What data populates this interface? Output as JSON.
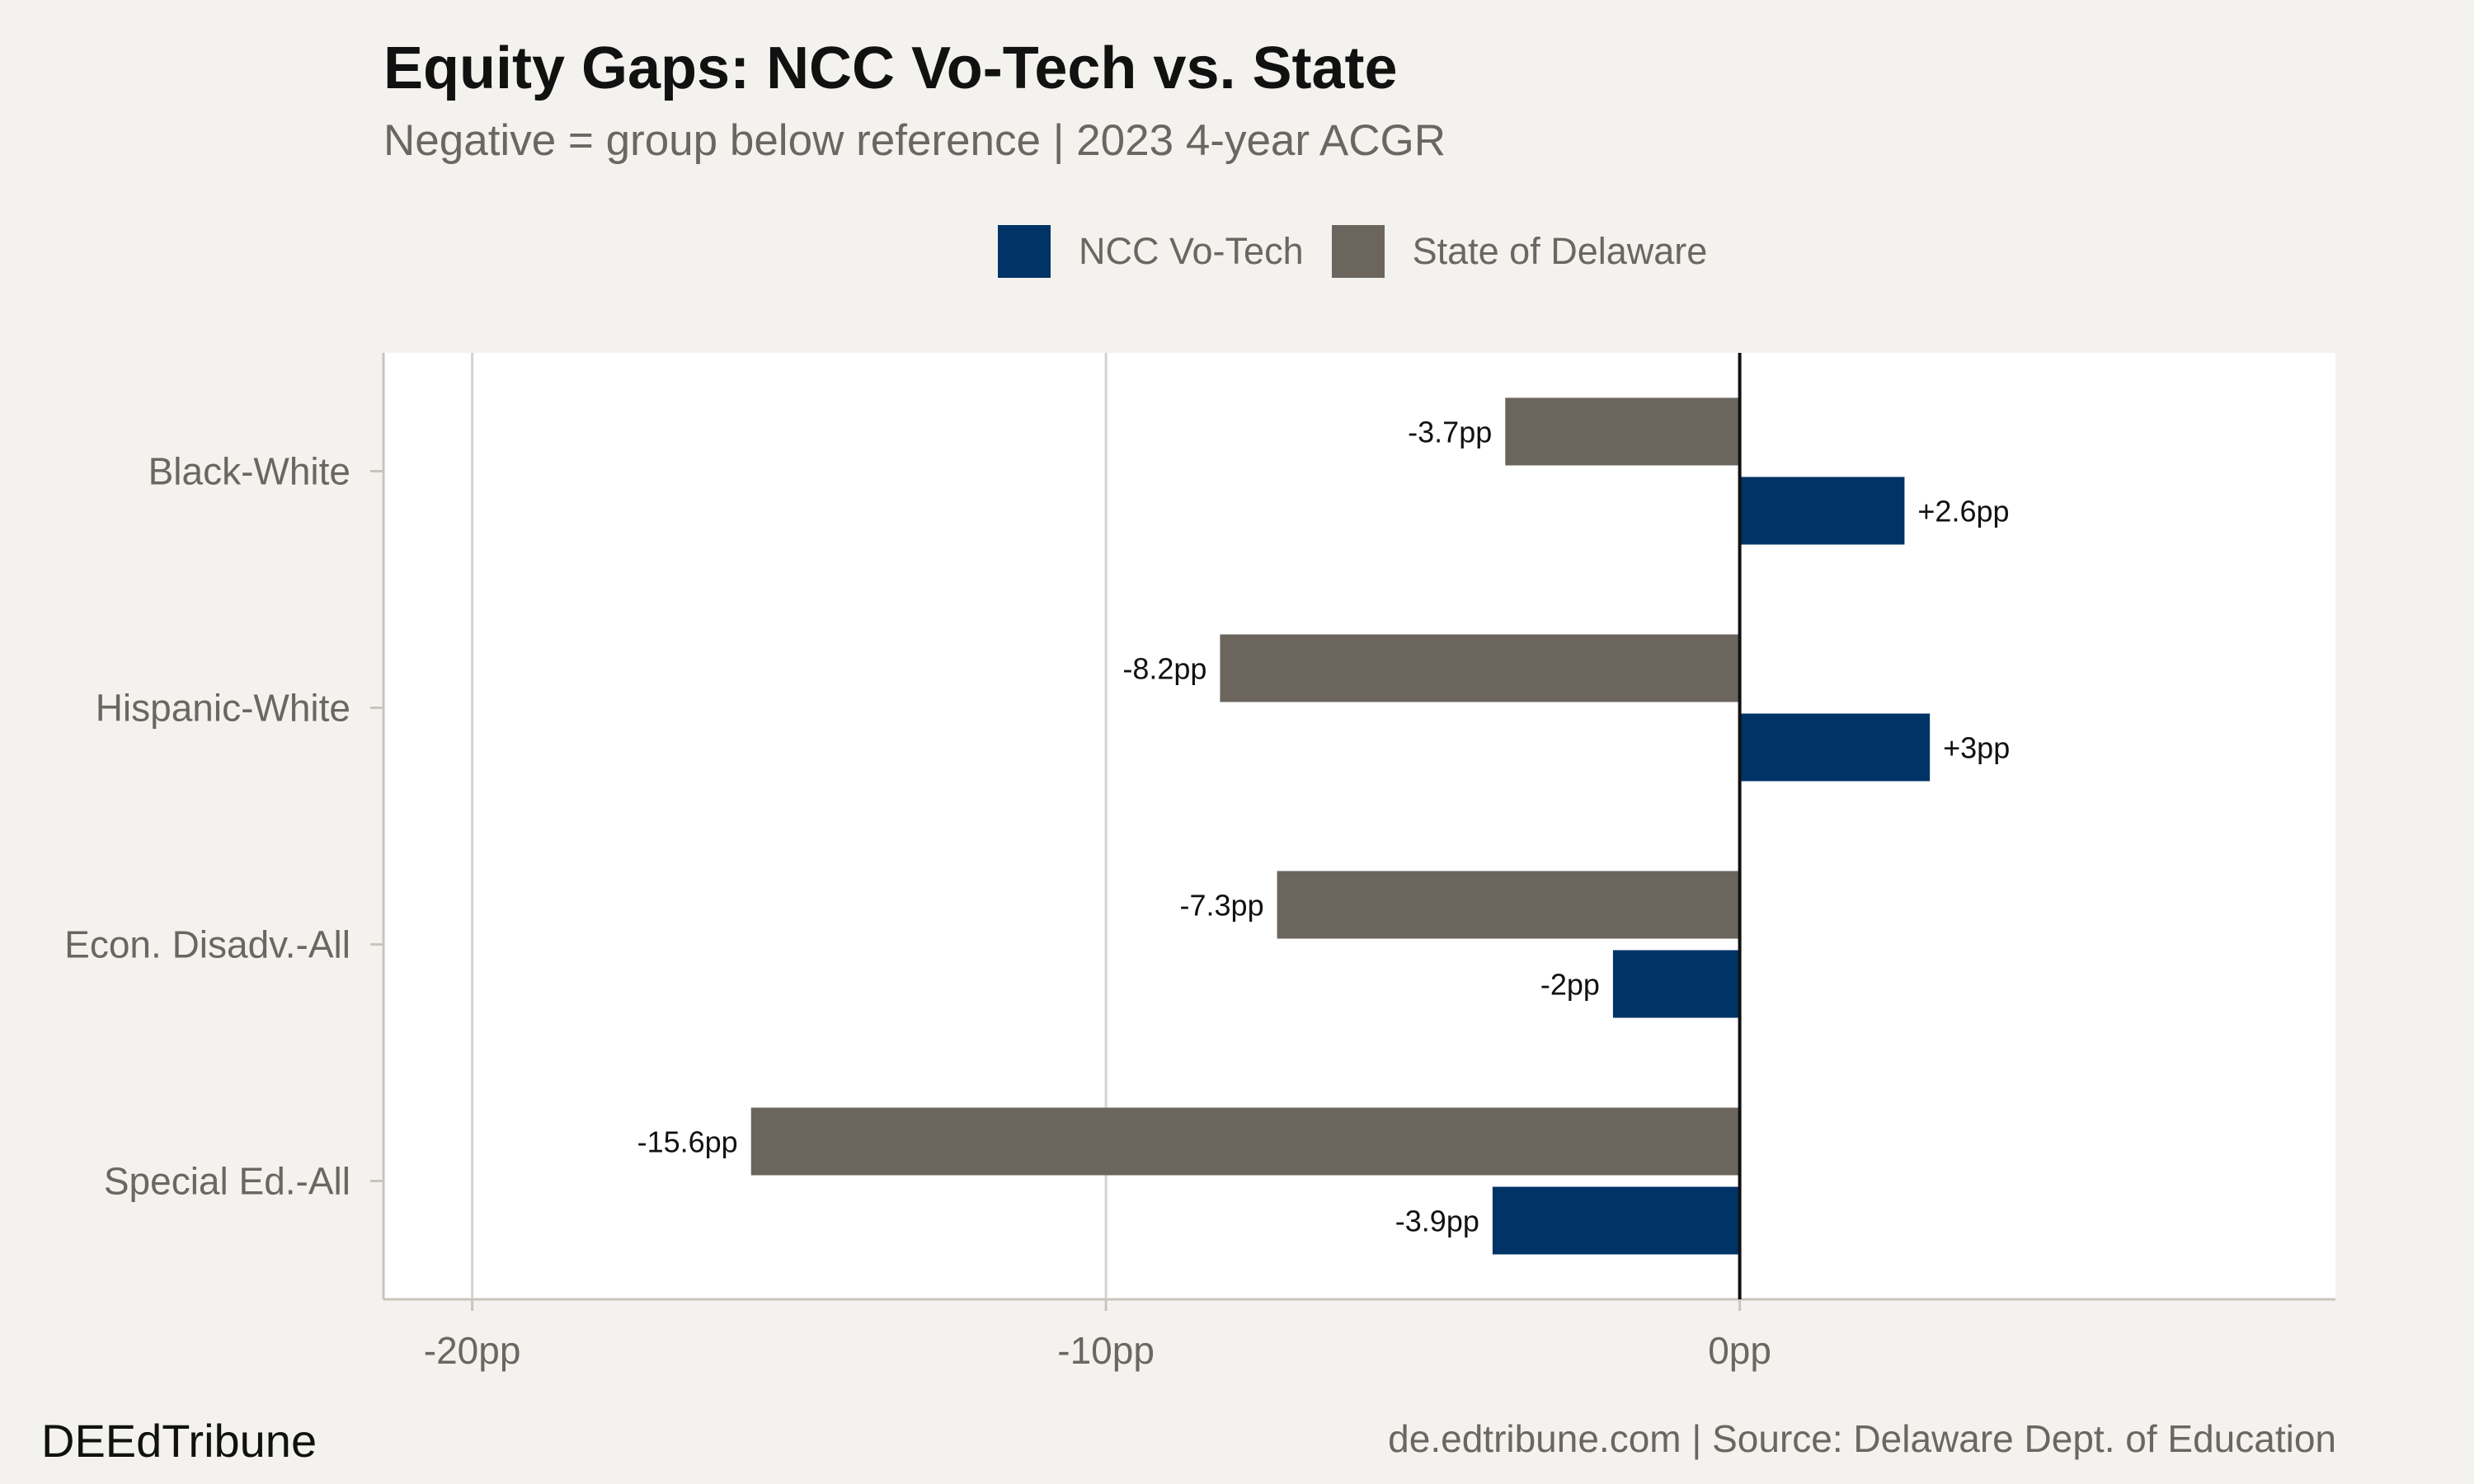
{
  "chart_data": {
    "type": "bar",
    "orientation": "horizontal",
    "title": "Equity Gaps: NCC Vo-Tech vs. State",
    "subtitle": "Negative = group below reference | 2023 4-year ACGR",
    "xlabel": "",
    "ylabel": "",
    "categories": [
      "Black-White",
      "Hispanic-White",
      "Econ. Disadv.-All",
      "Special Ed.-All"
    ],
    "series": [
      {
        "name": "NCC Vo-Tech",
        "color": "#003366",
        "values": [
          2.6,
          3,
          -2,
          -3.9
        ],
        "labels": [
          "+2.6pp",
          "+3pp",
          "-2pp",
          "-3.9pp"
        ]
      },
      {
        "name": "State of Delaware",
        "color": "#6b655e",
        "values": [
          -3.7,
          -8.2,
          -7.3,
          -15.6
        ],
        "labels": [
          "-3.7pp",
          "-8.2pp",
          "-7.3pp",
          "-15.6pp"
        ]
      }
    ],
    "xlim": [
      -21.4,
      9.4
    ],
    "xticks": [
      -20,
      -10,
      0
    ],
    "xtick_labels": [
      "-20pp",
      "-10pp",
      "0pp"
    ],
    "grid": "vertical",
    "zero_line": true,
    "legend_position": "top"
  },
  "footer": {
    "brand": "DEEdTribune",
    "source": "de.edtribune.com | Source: Delaware Dept. of Education"
  }
}
